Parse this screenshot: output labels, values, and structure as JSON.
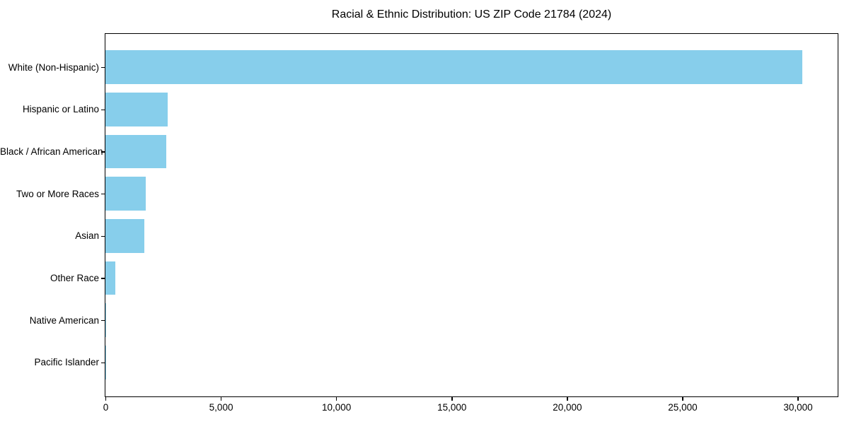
{
  "chart_data": {
    "type": "bar",
    "orientation": "horizontal",
    "title": "Racial & Ethnic Distribution: US ZIP Code 21784 (2024)",
    "categories": [
      "White (Non-Hispanic)",
      "Hispanic or Latino",
      "Black / African American",
      "Two or More Races",
      "Asian",
      "Other Race",
      "Native American",
      "Pacific Islander"
    ],
    "values": [
      30200,
      2690,
      2650,
      1750,
      1690,
      430,
      10,
      4
    ],
    "bar_color": "#87CEEB",
    "axis_color": "#000000",
    "background_color": "#FFFFFF",
    "xlim": [
      0,
      31700
    ],
    "xticks": [
      {
        "value": 0,
        "label": "0"
      },
      {
        "value": 5000,
        "label": "5,000"
      },
      {
        "value": 10000,
        "label": "10,000"
      },
      {
        "value": 15000,
        "label": "15,000"
      },
      {
        "value": 20000,
        "label": "20,000"
      },
      {
        "value": 25000,
        "label": "25,000"
      },
      {
        "value": 30000,
        "label": "30,000"
      }
    ],
    "grid": false,
    "legend": null,
    "xlabel": "",
    "ylabel": ""
  }
}
